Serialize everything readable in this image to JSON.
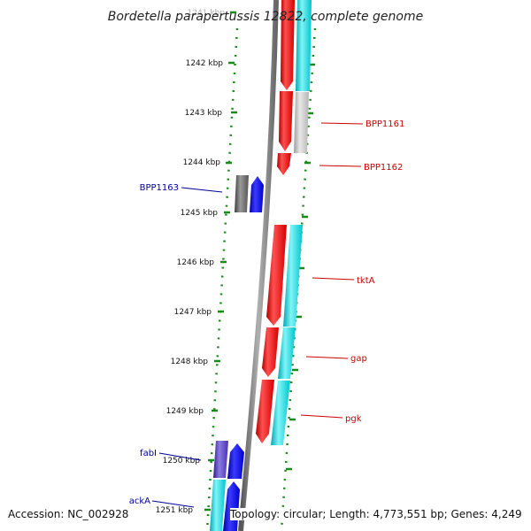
{
  "title": "Bordetella parapertussis 12822, complete genome",
  "accession_text": "Accession: NC_002928",
  "topology_text": "Topology: circular; Length: 4,773,551 bp; Genes: 4,249",
  "scale": {
    "unit": "kbp",
    "positions": [
      1241,
      1242,
      1243,
      1244,
      1245,
      1246,
      1247,
      1248,
      1249,
      1250,
      1251
    ]
  },
  "colors": {
    "forward_cds": "#ff0000",
    "reverse_cds": "#0000ff",
    "forward_feature": "#00e5ee",
    "reverse_feature": "#4b2fb3",
    "pseudo_feature": "#bdbdbd",
    "backbone": "#7a7a7a",
    "tick_dots": "#1a8a1a",
    "forward_label": "#cc0000",
    "reverse_label": "#000099"
  },
  "labels": [
    {
      "text": "BPP1161",
      "strand": "forward"
    },
    {
      "text": "BPP1162",
      "strand": "forward"
    },
    {
      "text": "BPP1163",
      "strand": "reverse"
    },
    {
      "text": "tktA",
      "strand": "forward"
    },
    {
      "text": "gap",
      "strand": "forward"
    },
    {
      "text": "pgk",
      "strand": "forward"
    },
    {
      "text": "fabI",
      "strand": "reverse"
    },
    {
      "text": "ackA",
      "strand": "reverse"
    }
  ]
}
